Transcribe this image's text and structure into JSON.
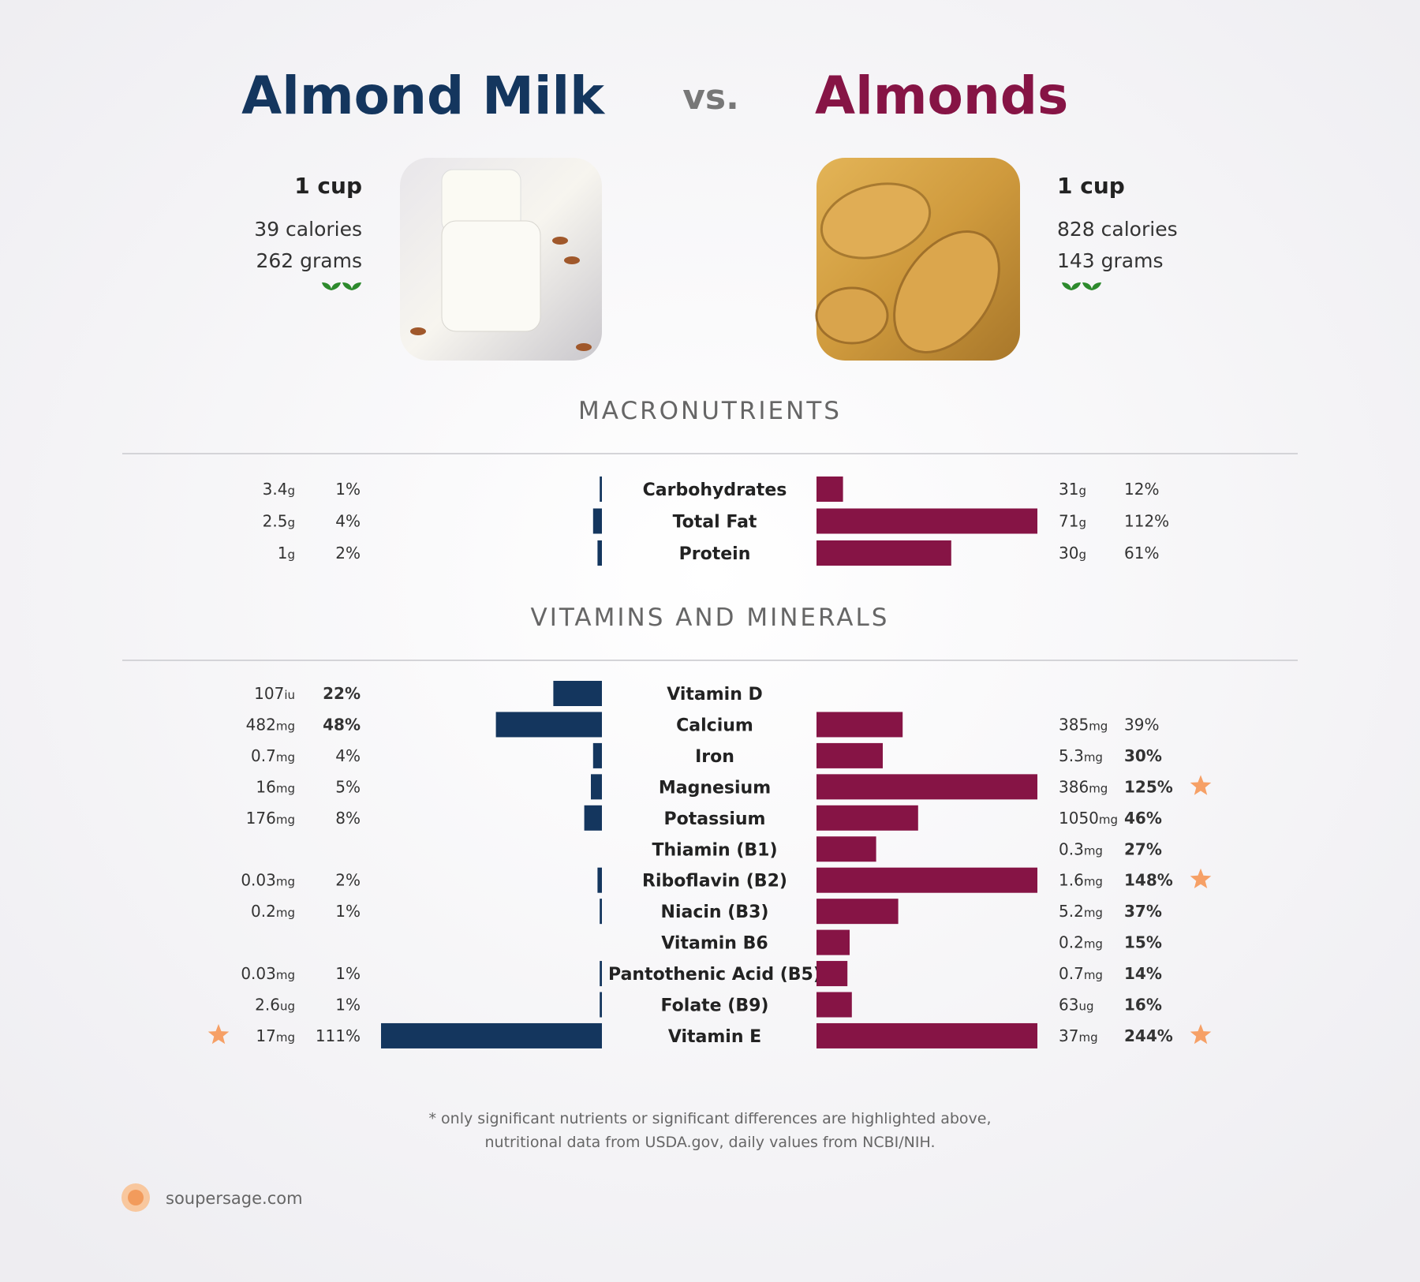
{
  "header": {
    "left": {
      "name": "Almond Milk",
      "serving": "1 cup",
      "calories": "39 calories",
      "grams": "262 grams",
      "color": "#14365e"
    },
    "vs": "vs.",
    "right": {
      "name": "Almonds",
      "serving": "1 cup",
      "calories": "828 calories",
      "grams": "143 grams",
      "color": "#861445"
    }
  },
  "xlim": [
    0,
    100
  ],
  "sections": [
    {
      "title": "MACRONUTRIENTS",
      "rows": [
        {
          "name": "Carbohydrates",
          "left": {
            "amount": 3.4,
            "unit": "g",
            "percent": 1,
            "percent_label": "1%"
          },
          "right": {
            "amount": 31,
            "unit": "g",
            "percent": 12,
            "percent_label": "12%"
          }
        },
        {
          "name": "Total Fat",
          "left": {
            "amount": 2.5,
            "unit": "g",
            "percent": 4,
            "percent_label": "4%"
          },
          "right": {
            "amount": 71,
            "unit": "g",
            "percent": 112,
            "percent_label": "112%"
          }
        },
        {
          "name": "Protein",
          "left": {
            "amount": 1,
            "unit": "g",
            "percent": 2,
            "percent_label": "2%"
          },
          "right": {
            "amount": 30,
            "unit": "g",
            "percent": 61,
            "percent_label": "61%"
          }
        }
      ]
    },
    {
      "title": "VITAMINS AND MINERALS",
      "rows": [
        {
          "name": "Vitamin D",
          "left": {
            "amount": 107,
            "unit": "iu",
            "percent": 22,
            "percent_label": "22%",
            "bold": true
          },
          "right": null
        },
        {
          "name": "Calcium",
          "left": {
            "amount": 482,
            "unit": "mg",
            "percent": 48,
            "percent_label": "48%",
            "bold": true
          },
          "right": {
            "amount": 385,
            "unit": "mg",
            "percent": 39,
            "percent_label": "39%"
          }
        },
        {
          "name": "Iron",
          "left": {
            "amount": 0.7,
            "unit": "mg",
            "percent": 4,
            "percent_label": "4%"
          },
          "right": {
            "amount": 5.3,
            "unit": "mg",
            "percent": 30,
            "percent_label": "30%",
            "bold": true
          }
        },
        {
          "name": "Magnesium",
          "left": {
            "amount": 16,
            "unit": "mg",
            "percent": 5,
            "percent_label": "5%"
          },
          "right": {
            "amount": 386,
            "unit": "mg",
            "percent": 125,
            "percent_label": "125%",
            "bold": true,
            "star": true
          }
        },
        {
          "name": "Potassium",
          "left": {
            "amount": 176,
            "unit": "mg",
            "percent": 8,
            "percent_label": "8%"
          },
          "right": {
            "amount": 1050,
            "unit": "mg",
            "percent": 46,
            "percent_label": "46%",
            "bold": true
          }
        },
        {
          "name": "Thiamin (B1)",
          "left": null,
          "right": {
            "amount": 0.3,
            "unit": "mg",
            "percent": 27,
            "percent_label": "27%",
            "bold": true
          }
        },
        {
          "name": "Riboflavin (B2)",
          "left": {
            "amount": 0.03,
            "unit": "mg",
            "percent": 2,
            "percent_label": "2%"
          },
          "right": {
            "amount": 1.6,
            "unit": "mg",
            "percent": 148,
            "percent_label": "148%",
            "bold": true,
            "star": true
          }
        },
        {
          "name": "Niacin (B3)",
          "left": {
            "amount": 0.2,
            "unit": "mg",
            "percent": 1,
            "percent_label": "1%"
          },
          "right": {
            "amount": 5.2,
            "unit": "mg",
            "percent": 37,
            "percent_label": "37%",
            "bold": true
          }
        },
        {
          "name": "Vitamin B6",
          "left": null,
          "right": {
            "amount": 0.2,
            "unit": "mg",
            "percent": 15,
            "percent_label": "15%",
            "bold": true
          }
        },
        {
          "name": "Pantothenic Acid (B5)",
          "left": {
            "amount": 0.03,
            "unit": "mg",
            "percent": 1,
            "percent_label": "1%"
          },
          "right": {
            "amount": 0.7,
            "unit": "mg",
            "percent": 14,
            "percent_label": "14%",
            "bold": true
          }
        },
        {
          "name": "Folate (B9)",
          "left": {
            "amount": 2.6,
            "unit": "ug",
            "percent": 1,
            "percent_label": "1%"
          },
          "right": {
            "amount": 63,
            "unit": "ug",
            "percent": 16,
            "percent_label": "16%",
            "bold": true
          }
        },
        {
          "name": "Vitamin E",
          "left": {
            "amount": 17,
            "unit": "mg",
            "percent": 111,
            "percent_label": "111%",
            "star": true
          },
          "right": {
            "amount": 37,
            "unit": "mg",
            "percent": 244,
            "percent_label": "244%",
            "bold": true,
            "star": true
          }
        }
      ]
    }
  ],
  "footnote": [
    "* only significant nutrients or significant differences are highlighted above,",
    "nutritional data from USDA.gov, daily values from NCBI/NIH."
  ],
  "brand": "soupersage.com"
}
